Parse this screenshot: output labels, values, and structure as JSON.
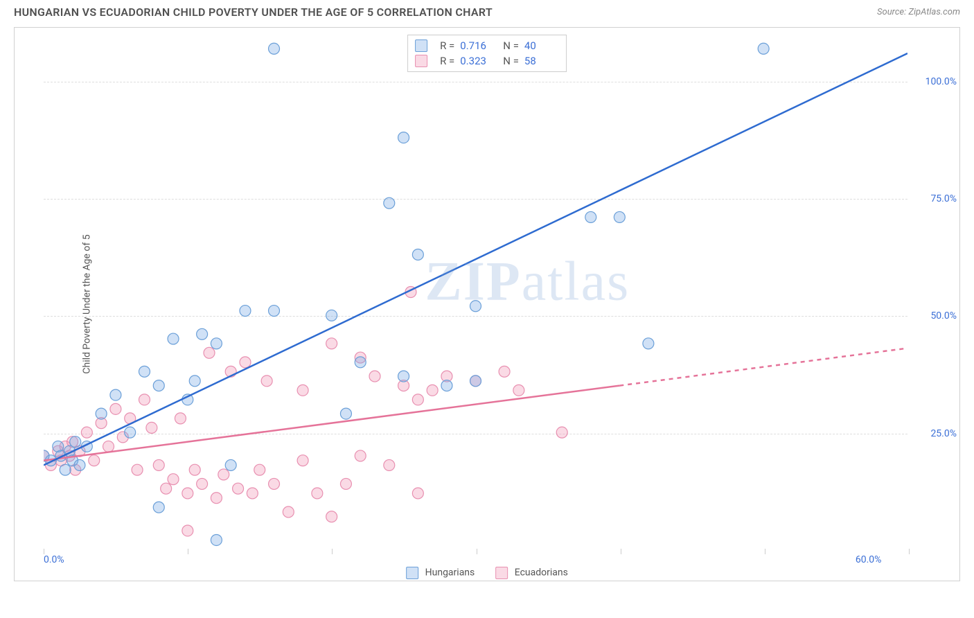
{
  "header": {
    "title": "HUNGARIAN VS ECUADORIAN CHILD POVERTY UNDER THE AGE OF 5 CORRELATION CHART",
    "source_prefix": "Source: ",
    "source_name": "ZipAtlas.com"
  },
  "watermark": {
    "bold": "ZIP",
    "rest": "atlas"
  },
  "chart": {
    "type": "scatter",
    "ylabel": "Child Poverty Under the Age of 5",
    "xlim": [
      0,
      60
    ],
    "ylim": [
      0,
      110
    ],
    "xtick_positions": [
      0,
      10,
      20,
      30,
      40,
      50,
      60
    ],
    "xtick_labels": {
      "first": "0.0%",
      "last": "60.0%"
    },
    "ytick_positions": [
      25,
      50,
      75,
      100
    ],
    "ytick_labels": [
      "25.0%",
      "50.0%",
      "75.0%",
      "100.0%"
    ],
    "background_color": "#ffffff",
    "grid_color": "#dddddd",
    "axis_label_color": "#3b6fd6",
    "series": {
      "hungarians": {
        "label": "Hungarians",
        "color_fill": "rgba(120,170,230,0.35)",
        "color_stroke": "#6a9fd8",
        "line_color": "#2e6bd0",
        "line_width": 2.5,
        "marker_radius": 8,
        "R": "0.716",
        "N": "40",
        "trend": {
          "x1": 0,
          "y1": 18,
          "x2": 60,
          "y2": 106,
          "dash_after_x": 60
        },
        "points": [
          [
            0,
            20
          ],
          [
            0.5,
            19
          ],
          [
            1,
            22
          ],
          [
            1.2,
            20
          ],
          [
            1.5,
            17
          ],
          [
            1.8,
            21
          ],
          [
            2,
            19
          ],
          [
            2.2,
            23
          ],
          [
            2.5,
            18
          ],
          [
            3,
            22
          ],
          [
            4,
            29
          ],
          [
            5,
            33
          ],
          [
            6,
            25
          ],
          [
            7,
            38
          ],
          [
            8,
            35
          ],
          [
            9,
            45
          ],
          [
            10,
            32
          ],
          [
            10.5,
            36
          ],
          [
            11,
            46
          ],
          [
            12,
            44
          ],
          [
            13,
            18
          ],
          [
            14,
            51
          ],
          [
            12,
            2
          ],
          [
            16,
            51
          ],
          [
            20,
            50
          ],
          [
            21,
            29
          ],
          [
            22,
            40
          ],
          [
            24,
            74
          ],
          [
            25,
            37
          ],
          [
            26,
            63
          ],
          [
            25,
            88
          ],
          [
            28,
            35
          ],
          [
            30,
            36
          ],
          [
            30,
            52
          ],
          [
            16,
            107
          ],
          [
            38,
            71
          ],
          [
            40,
            71
          ],
          [
            42,
            44
          ],
          [
            50,
            107
          ],
          [
            8,
            9
          ]
        ]
      },
      "ecuadorians": {
        "label": "Ecuadorians",
        "color_fill": "rgba(240,150,180,0.35)",
        "color_stroke": "#e88fb0",
        "line_color": "#e57399",
        "line_width": 2.5,
        "marker_radius": 8,
        "R": "0.323",
        "N": "58",
        "trend": {
          "x1": 0,
          "y1": 19,
          "x2": 60,
          "y2": 43,
          "dash_after_x": 40
        },
        "points": [
          [
            0,
            20
          ],
          [
            0.5,
            18
          ],
          [
            1,
            21
          ],
          [
            1.2,
            19
          ],
          [
            1.5,
            22
          ],
          [
            1.8,
            20
          ],
          [
            2,
            23
          ],
          [
            2.2,
            17
          ],
          [
            2.5,
            21
          ],
          [
            3,
            25
          ],
          [
            3.5,
            19
          ],
          [
            4,
            27
          ],
          [
            4.5,
            22
          ],
          [
            5,
            30
          ],
          [
            5.5,
            24
          ],
          [
            6,
            28
          ],
          [
            6.5,
            17
          ],
          [
            7,
            32
          ],
          [
            7.5,
            26
          ],
          [
            8,
            18
          ],
          [
            8.5,
            13
          ],
          [
            9,
            15
          ],
          [
            9.5,
            28
          ],
          [
            10,
            12
          ],
          [
            10.5,
            17
          ],
          [
            11,
            14
          ],
          [
            11.5,
            42
          ],
          [
            12,
            11
          ],
          [
            12.5,
            16
          ],
          [
            13,
            38
          ],
          [
            13.5,
            13
          ],
          [
            14,
            40
          ],
          [
            14.5,
            12
          ],
          [
            15,
            17
          ],
          [
            15.5,
            36
          ],
          [
            16,
            14
          ],
          [
            17,
            8
          ],
          [
            10,
            4
          ],
          [
            18,
            19
          ],
          [
            19,
            12
          ],
          [
            20,
            7
          ],
          [
            21,
            14
          ],
          [
            22,
            20
          ],
          [
            23,
            37
          ],
          [
            24,
            18
          ],
          [
            25,
            35
          ],
          [
            25.5,
            55
          ],
          [
            26,
            32
          ],
          [
            27,
            34
          ],
          [
            28,
            37
          ],
          [
            30,
            36
          ],
          [
            32,
            38
          ],
          [
            33,
            34
          ],
          [
            26,
            12
          ],
          [
            36,
            25
          ],
          [
            22,
            41
          ],
          [
            20,
            44
          ],
          [
            18,
            34
          ]
        ]
      }
    }
  }
}
